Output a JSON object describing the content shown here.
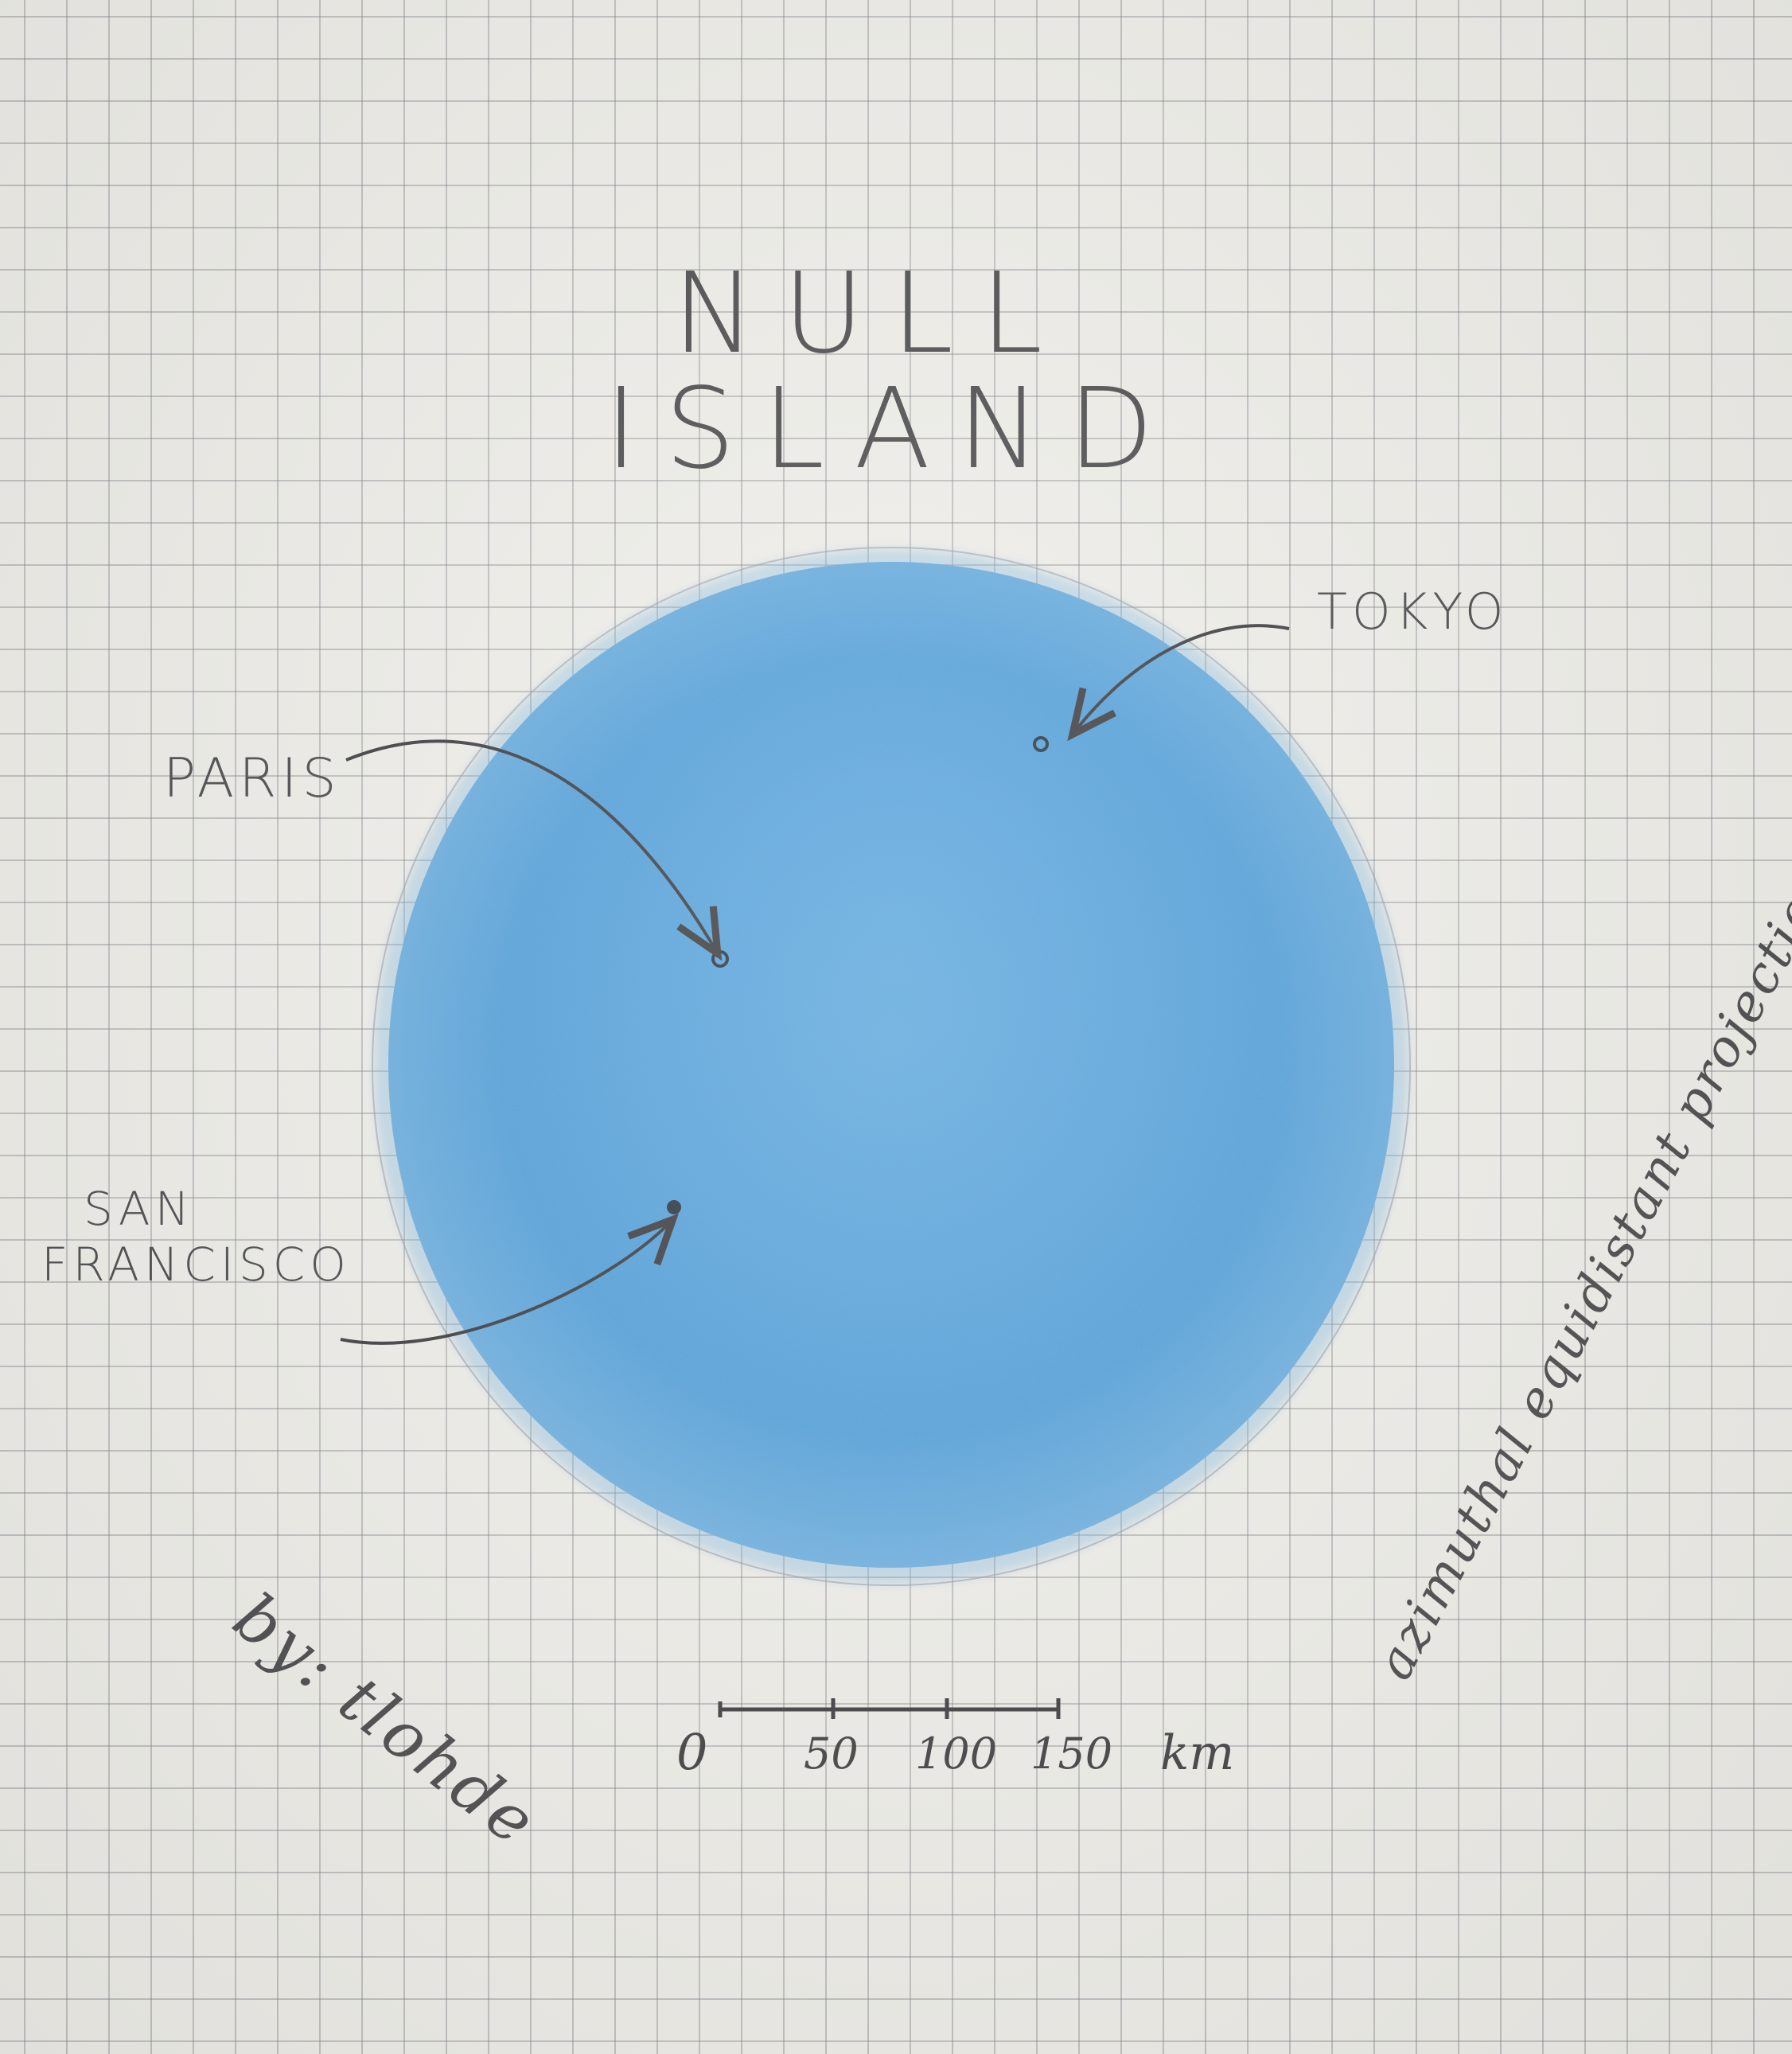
{
  "title": {
    "line1": "NULL",
    "line2": "ISLAND"
  },
  "places": [
    {
      "name": "PARIS"
    },
    {
      "name": "TOKYO"
    },
    {
      "name": "SAN FRANCISCO",
      "line1": "SAN",
      "line2": "FRANCISCO"
    }
  ],
  "byline": "by: tlohde",
  "projection": "azimuthal equidistant projection.",
  "scale_bar": {
    "ticks": [
      "0",
      "50",
      "100",
      "150"
    ],
    "unit": "km"
  },
  "colors": {
    "paper": "#efeee9",
    "grid": "#8a8a90",
    "island_fill": "#4a9bd8",
    "ink": "#3c3c40"
  },
  "icons": {
    "place_marker": "dot-marker-icon",
    "pointer": "curved-arrow-icon"
  }
}
